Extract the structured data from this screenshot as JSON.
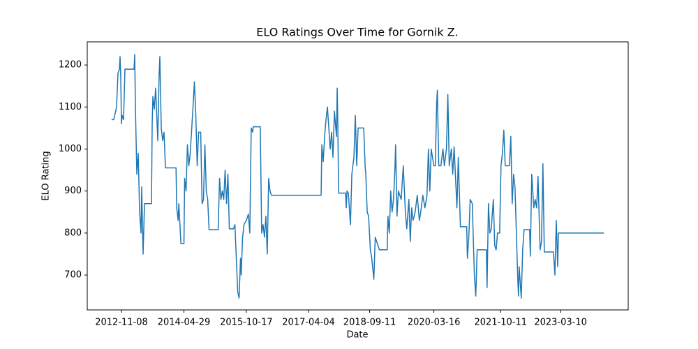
{
  "chart_data": {
    "type": "line",
    "title": "ELO Ratings Over Time for Gornik Z.",
    "x_label": "Date",
    "y_label": "ELO Rating",
    "color": "#1f77b4",
    "xlim": [
      "2012-01-19",
      "2024-10-11"
    ],
    "xticks": [
      "2012-11-08",
      "2014-04-29",
      "2015-10-17",
      "2017-04-04",
      "2018-09-11",
      "2020-03-16",
      "2021-10-11",
      "2023-03-10"
    ],
    "ylim": [
      617,
      1255
    ],
    "yticks": [
      700,
      800,
      900,
      1000,
      1100,
      1200
    ],
    "x": [
      "2012-08-15",
      "2012-09-03",
      "2012-09-15",
      "2012-09-27",
      "2012-10-09",
      "2012-10-21",
      "2012-10-27",
      "2012-11-02",
      "2012-11-08",
      "2012-11-14",
      "2012-11-26",
      "2012-12-08",
      "2013-02-24",
      "2013-03-02",
      "2013-03-08",
      "2013-03-20",
      "2013-04-01",
      "2013-04-13",
      "2013-04-25",
      "2013-05-01",
      "2013-05-13",
      "2013-05-25",
      "2013-07-24",
      "2013-07-30",
      "2013-08-05",
      "2013-08-17",
      "2013-08-29",
      "2013-09-16",
      "2013-09-28",
      "2013-10-04",
      "2013-10-16",
      "2013-10-28",
      "2013-11-09",
      "2013-11-21",
      "2014-02-20",
      "2014-02-26",
      "2014-03-10",
      "2014-03-16",
      "2014-04-03",
      "2014-04-29",
      "2014-05-05",
      "2014-05-17",
      "2014-05-29",
      "2014-06-10",
      "2014-06-22",
      "2014-07-16",
      "2014-07-28",
      "2014-08-09",
      "2014-08-21",
      "2014-09-02",
      "2014-09-20",
      "2014-10-02",
      "2014-10-14",
      "2014-10-26",
      "2014-11-07",
      "2014-11-19",
      "2014-12-01",
      "2015-02-17",
      "2015-03-01",
      "2015-03-13",
      "2015-03-25",
      "2015-04-06",
      "2015-04-18",
      "2015-04-30",
      "2015-05-12",
      "2015-05-24",
      "2015-06-29",
      "2015-07-11",
      "2015-07-17",
      "2015-08-04",
      "2015-08-16",
      "2015-08-28",
      "2015-09-03",
      "2015-09-15",
      "2015-09-27",
      "2015-10-17",
      "2015-11-04",
      "2015-11-16",
      "2015-11-28",
      "2015-12-10",
      "2015-12-16",
      "2016-02-14",
      "2016-02-26",
      "2016-03-09",
      "2016-03-21",
      "2016-04-02",
      "2016-04-14",
      "2016-04-26",
      "2016-05-08",
      "2016-05-20",
      "2017-07-21",
      "2017-07-27",
      "2017-08-08",
      "2017-08-20",
      "2017-09-01",
      "2017-09-13",
      "2017-09-25",
      "2017-10-07",
      "2017-10-19",
      "2017-10-31",
      "2017-11-12",
      "2017-11-30",
      "2017-12-06",
      "2017-12-12",
      "2017-12-18",
      "2018-02-16",
      "2018-02-22",
      "2018-02-28",
      "2018-03-12",
      "2018-03-30",
      "2018-04-11",
      "2018-04-29",
      "2018-05-11",
      "2018-05-23",
      "2018-06-04",
      "2018-07-22",
      "2018-08-03",
      "2018-08-09",
      "2018-08-21",
      "2018-09-02",
      "2018-09-17",
      "2018-09-29",
      "2018-10-17",
      "2018-10-29",
      "2018-11-10",
      "2018-11-22",
      "2018-12-04",
      "2019-02-09",
      "2019-02-15",
      "2019-02-27",
      "2019-03-11",
      "2019-03-23",
      "2019-04-04",
      "2019-04-16",
      "2019-04-22",
      "2019-05-04",
      "2019-05-16",
      "2019-06-09",
      "2019-06-27",
      "2019-07-15",
      "2019-07-27",
      "2019-08-14",
      "2019-08-26",
      "2019-09-07",
      "2019-09-19",
      "2019-10-07",
      "2019-10-25",
      "2019-11-12",
      "2019-11-24",
      "2019-12-12",
      "2019-12-30",
      "2020-01-17",
      "2020-01-29",
      "2020-02-10",
      "2020-02-22",
      "2020-03-16",
      "2020-03-28",
      "2020-04-09",
      "2020-04-15",
      "2020-04-27",
      "2020-05-15",
      "2020-06-02",
      "2020-06-14",
      "2020-07-02",
      "2020-07-14",
      "2020-07-26",
      "2020-08-13",
      "2020-08-25",
      "2020-09-06",
      "2020-09-30",
      "2020-10-12",
      "2020-10-30",
      "2020-12-23",
      "2020-12-29",
      "2021-01-10",
      "2021-01-22",
      "2021-02-09",
      "2021-02-27",
      "2021-03-11",
      "2021-03-23",
      "2021-06-10",
      "2021-06-16",
      "2021-06-28",
      "2021-07-10",
      "2021-07-22",
      "2021-08-09",
      "2021-08-21",
      "2021-09-02",
      "2021-09-14",
      "2021-10-02",
      "2021-10-14",
      "2021-10-26",
      "2021-11-07",
      "2021-11-19",
      "2021-12-25",
      "2022-01-06",
      "2022-01-18",
      "2022-01-30",
      "2022-02-11",
      "2022-02-23",
      "2022-03-07",
      "2022-03-13",
      "2022-03-19",
      "2022-04-06",
      "2022-04-18",
      "2022-04-30",
      "2022-06-17",
      "2022-06-23",
      "2022-07-05",
      "2022-07-23",
      "2022-08-04",
      "2022-08-16",
      "2022-08-28",
      "2022-09-15",
      "2022-09-27",
      "2022-10-09",
      "2022-10-21",
      "2023-01-08",
      "2023-01-20",
      "2023-02-01",
      "2023-02-13",
      "2023-02-19",
      "2024-03-15"
    ],
    "values": [
      1070,
      1070,
      1085,
      1100,
      1180,
      1190,
      1220,
      1170,
      1060,
      1080,
      1070,
      1190,
      1190,
      1225,
      1100,
      940,
      990,
      850,
      800,
      910,
      750,
      870,
      870,
      1060,
      1125,
      1095,
      1145,
      1020,
      1180,
      1220,
      1050,
      1020,
      1040,
      955,
      955,
      860,
      830,
      870,
      775,
      775,
      930,
      900,
      1010,
      960,
      990,
      1100,
      1160,
      1080,
      960,
      1040,
      1040,
      870,
      880,
      1010,
      900,
      880,
      808,
      808,
      930,
      880,
      900,
      880,
      950,
      870,
      940,
      810,
      810,
      820,
      780,
      660,
      645,
      740,
      700,
      790,
      820,
      830,
      845,
      800,
      1050,
      1040,
      1053,
      1053,
      800,
      820,
      790,
      840,
      750,
      930,
      900,
      890,
      890,
      1010,
      970,
      1030,
      1070,
      1100,
      1050,
      1000,
      1040,
      980,
      1090,
      1030,
      1145,
      1050,
      895,
      895,
      860,
      900,
      895,
      820,
      940,
      980,
      1080,
      960,
      1050,
      1050,
      960,
      940,
      850,
      840,
      760,
      740,
      690,
      790,
      780,
      770,
      760,
      760,
      840,
      800,
      900,
      850,
      880,
      950,
      1010,
      840,
      900,
      880,
      960,
      850,
      810,
      880,
      780,
      860,
      830,
      850,
      890,
      830,
      850,
      890,
      860,
      890,
      1000,
      900,
      1000,
      960,
      960,
      1110,
      1140,
      960,
      960,
      1000,
      960,
      1000,
      1130,
      960,
      1000,
      940,
      1005,
      860,
      980,
      815,
      815,
      740,
      790,
      880,
      870,
      700,
      650,
      760,
      760,
      670,
      870,
      800,
      810,
      880,
      770,
      760,
      800,
      800,
      960,
      990,
      1045,
      960,
      960,
      1030,
      870,
      940,
      910,
      800,
      690,
      650,
      720,
      645,
      760,
      808,
      808,
      745,
      940,
      860,
      880,
      860,
      935,
      760,
      780,
      965,
      755,
      755,
      700,
      830,
      720,
      800,
      800
    ]
  }
}
